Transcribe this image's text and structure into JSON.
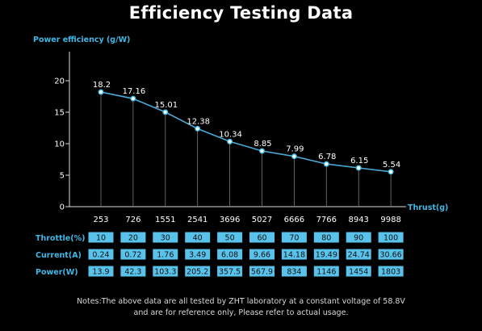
{
  "chart_data": {
    "type": "line",
    "title": "Efficiency Testing Data",
    "ylabel": "Power efficiency (g/W)",
    "xlabel": "Thrust(g)",
    "ylim": [
      0,
      20
    ],
    "yticks": [
      0,
      5,
      10,
      15,
      20
    ],
    "categories": [
      "253",
      "726",
      "1551",
      "2541",
      "3696",
      "5027",
      "6666",
      "7766",
      "8943",
      "9988"
    ],
    "values": [
      18.2,
      17.16,
      15.01,
      12.38,
      10.34,
      8.85,
      7.99,
      6.78,
      6.15,
      5.54
    ],
    "data_labels": [
      "18.2",
      "17.16",
      "15.01",
      "12.38",
      "10.34",
      "8.85",
      "7.99",
      "6.78",
      "6.15",
      "5.54"
    ],
    "grid": false
  },
  "table": {
    "rows": [
      {
        "label": "Throttle(%)",
        "values": [
          "10",
          "20",
          "30",
          "40",
          "50",
          "60",
          "70",
          "80",
          "90",
          "100"
        ]
      },
      {
        "label": "Current(A)",
        "values": [
          "0.24",
          "0.72",
          "1.76",
          "3.49",
          "6.08",
          "9.66",
          "14.18",
          "19.49",
          "24.74",
          "30.66"
        ]
      },
      {
        "label": "Power(W)",
        "values": [
          "13.9",
          "42.3",
          "103.3",
          "205.2",
          "357.5",
          "567.9",
          "834",
          "1146",
          "1454",
          "1803"
        ]
      }
    ]
  },
  "notes": {
    "line1": "Notes:The above data are all tested by ZHT laboratory at a constant voltage of 58.8V",
    "line2": "and are for reference only, Please refer to actual usage."
  },
  "colors": {
    "accent": "#3fb8e6",
    "cell_bg": "#58c2ea",
    "line": "#4aa9d8",
    "background": "#000000",
    "text": "#ffffff"
  }
}
